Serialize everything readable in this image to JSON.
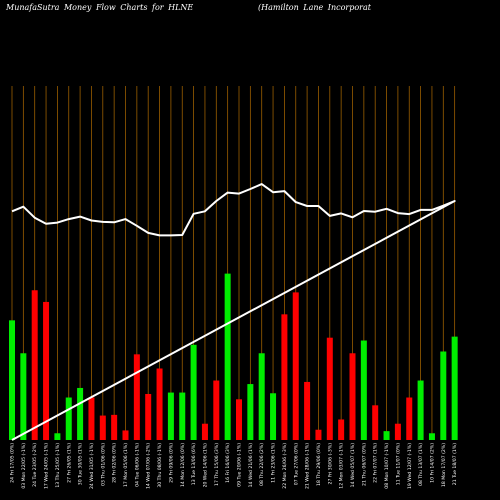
{
  "header": {
    "title": "MunafaSutra  Money Flow  Charts for HLNE",
    "company": "(Hamilton  Lane   Incorporat"
  },
  "colors": {
    "background": "#000000",
    "up": "#00ee00",
    "down": "#ff0000",
    "price_line": "#ffffff",
    "gridline": "#9a5e00"
  },
  "chart_data": {
    "type": "bar",
    "title": "MunafaSutra  Money Flow  Charts for HLNE",
    "price_ylim": [
      0,
      100
    ],
    "volume_ylim": [
      0,
      100
    ],
    "grid": "vertical",
    "categories": [
      "24 Fri 17/05 (0%)",
      "03 Mon 22/05 (-1%)",
      "24 Tue 23/05 (-2%)",
      "17 Wed 24/05 (-1%)",
      "13 Thu 25/05 (-1%)",
      "27 Fri 26/05 (1%)",
      "30 Tue 30/05 (1%)",
      "24 Wed 31/05 (-1%)",
      "03 Thu 01/06 (0%)",
      "28 Fri 02/06 (0%)",
      "17 Mon 05/06 (1%)",
      "04 Tue 06/06 (-1%)",
      "14 Wed 07/06 (-2%)",
      "30 Thu 08/06 (-1%)",
      "29 Fri 09/06 (0%)",
      "14 Mon 12/06 (0%)",
      "13 Tue 13/06 (6%)",
      "20 Wed 14/06 (1%)",
      "17 Thu 15/06 (3%)",
      "16 Fri 16/06 (3%)",
      "09 Tue 20/06 (-1%)",
      "14 Wed 21/06 (1%)",
      "08 Thu 22/06 (2%)",
      "11 Fri 23/06 (1%)",
      "22 Mon 26/06 (-3%)",
      "07 Tue 27/06 (0%)",
      "21 Wed 28/06 (-1%)",
      "18 Thu 29/06 (0%)",
      "27 Fri 30/06 (-3%)",
      "12 Mon 03/07 (-1%)",
      "14 Wed 05/07 (1%)",
      "21 Thu 06/07 (0%)",
      "22 Fri 07/07 (1%)",
      "08 Mon 10/07 (-1%)",
      "11 Tue 11/07 (0%)",
      "19 Wed 12/07 (-1%)",
      "08 Thu 13/07 (1%)",
      "10 Fri 14/07 (2%)",
      "18 Mon 17/07 (2%)",
      "21 Tue 18/07 (1%)"
    ],
    "series": [
      {
        "type": "line",
        "values": [
          64.6,
          65.9,
          62.8,
          61.1,
          61.4,
          62.4,
          63.1,
          62.0,
          61.6,
          61.5,
          62.4,
          60.5,
          58.5,
          57.8,
          57.8,
          57.9,
          63.9,
          64.6,
          67.5,
          69.9,
          69.6,
          70.9,
          72.3,
          70.0,
          70.3,
          67.2,
          66.1,
          66.1,
          63.3,
          64.0,
          62.9,
          64.7,
          64.5,
          65.3,
          64.1,
          63.8,
          65.0,
          65.0,
          66.2,
          67.5
        ]
      },
      {
        "type": "bar",
        "values": [
          33.8,
          24.5,
          42.3,
          39.0,
          1.9,
          12.0,
          14.7,
          12.0,
          6.9,
          7.1,
          2.7,
          24.2,
          13.0,
          20.2,
          13.4,
          13.4,
          26.9,
          4.6,
          16.8,
          47.0,
          11.5,
          15.8,
          24.5,
          13.2,
          35.5,
          41.7,
          16.4,
          2.9,
          28.9,
          5.8,
          24.5,
          28.1,
          9.8,
          2.5,
          4.6,
          12.0,
          16.8,
          1.9,
          25.0,
          29.2
        ],
        "direction": [
          "up",
          "up",
          "down",
          "down",
          "up",
          "up",
          "up",
          "down",
          "down",
          "down",
          "down",
          "down",
          "down",
          "down",
          "up",
          "up",
          "up",
          "down",
          "down",
          "up",
          "down",
          "up",
          "up",
          "up",
          "down",
          "down",
          "down",
          "down",
          "down",
          "down",
          "down",
          "up",
          "down",
          "up",
          "down",
          "down",
          "up",
          "up",
          "up",
          "up"
        ]
      }
    ]
  }
}
